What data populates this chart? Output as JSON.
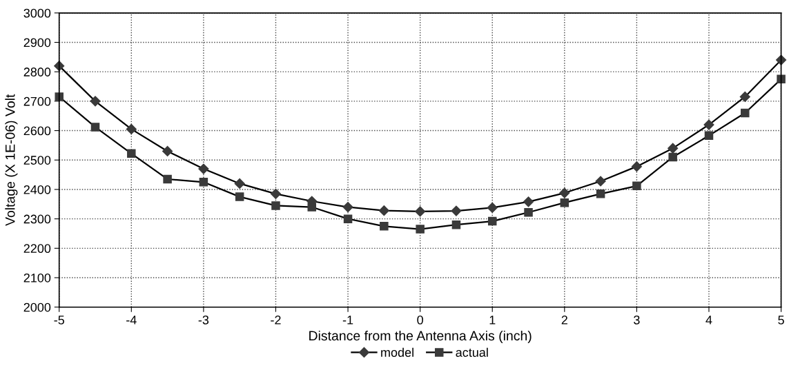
{
  "chart_data": {
    "type": "line",
    "xlabel": "Distance from the Antenna Axis (inch)",
    "ylabel": "Voltage (X 1E-06) Volt",
    "x": [
      -5,
      -4.5,
      -4,
      -3.5,
      -3,
      -2.5,
      -2,
      -1.5,
      -1,
      -0.5,
      0,
      0.5,
      1,
      1.5,
      2,
      2.5,
      3,
      3.5,
      4,
      4.5,
      5
    ],
    "series": [
      {
        "name": "model",
        "color": "#3a3a3a",
        "marker": "diamond",
        "values": [
          2820,
          2700,
          2605,
          2530,
          2470,
          2420,
          2385,
          2360,
          2340,
          2328,
          2325,
          2327,
          2338,
          2358,
          2388,
          2428,
          2478,
          2540,
          2620,
          2715,
          2840
        ]
      },
      {
        "name": "actual",
        "color": "#3a3a3a",
        "marker": "square",
        "values": [
          2715,
          2612,
          2522,
          2435,
          2425,
          2375,
          2345,
          2340,
          2300,
          2275,
          2265,
          2280,
          2292,
          2322,
          2355,
          2385,
          2412,
          2510,
          2583,
          2660,
          2775
        ]
      }
    ],
    "xlim": [
      -5,
      5
    ],
    "xticks": [
      -5,
      -4,
      -3,
      -2,
      -1,
      0,
      1,
      2,
      3,
      4,
      5
    ],
    "ylim": [
      2000,
      3000
    ],
    "yticks": [
      2000,
      2100,
      2200,
      2300,
      2400,
      2500,
      2600,
      2700,
      2800,
      2900,
      3000
    ],
    "grid": true,
    "legend": "bottom",
    "line_style": "solid"
  }
}
